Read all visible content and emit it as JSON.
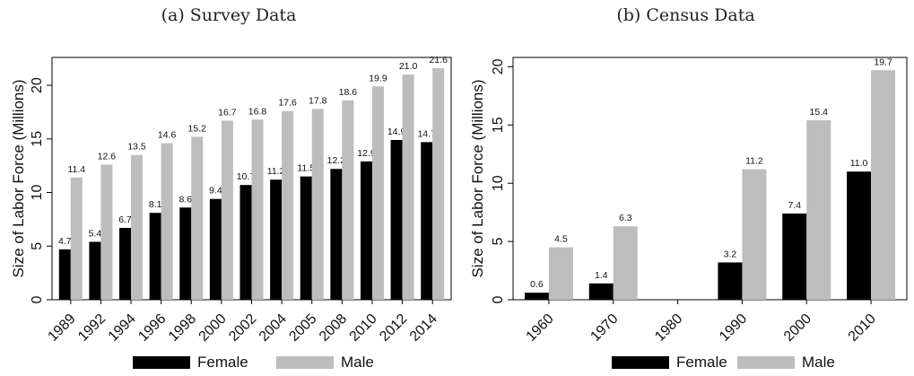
{
  "colors": {
    "female": "#000000",
    "male": "#bdbdbd"
  },
  "chart_data": [
    {
      "type": "bar",
      "title": "(a) Survey Data",
      "ylabel": "Size of Labor Force (Millions)",
      "xlabel": "",
      "ylim": [
        0,
        22.6
      ],
      "yticks": [
        0,
        5,
        10,
        15,
        20
      ],
      "grid": false,
      "legend_placement": "bottom",
      "categories": [
        "1989",
        "1992",
        "1994",
        "1996",
        "1998",
        "2000",
        "2002",
        "2004",
        "2005",
        "2008",
        "2010",
        "2012",
        "2014"
      ],
      "series": [
        {
          "name": "Female",
          "values": [
            4.7,
            5.4,
            6.7,
            8.1,
            8.6,
            9.4,
            10.7,
            11.2,
            11.5,
            12.2,
            12.9,
            14.9,
            14.7
          ],
          "labels": [
            "4.7",
            "5.4",
            "6.7",
            "8.1",
            "8.6",
            "9.4",
            "10.7",
            "11.2",
            "11.5",
            "12.2",
            "12.9",
            "14.9",
            "14.7"
          ]
        },
        {
          "name": "Male",
          "values": [
            11.4,
            12.6,
            13.5,
            14.6,
            15.2,
            16.7,
            16.8,
            17.6,
            17.8,
            18.6,
            19.9,
            21.0,
            21.6
          ],
          "labels": [
            "11.4",
            "12.6",
            "13.5",
            "14.6",
            "15.2",
            "16.7",
            "16.8",
            "17.6",
            "17.8",
            "18.6",
            "19.9",
            "21.0",
            "21.6"
          ]
        }
      ]
    },
    {
      "type": "bar",
      "title": "(b) Census Data",
      "ylabel": "Size of Labor Force (Millions)",
      "xlabel": "",
      "ylim": [
        0,
        20.8
      ],
      "yticks": [
        0,
        5,
        10,
        15,
        20
      ],
      "grid": false,
      "legend_placement": "bottom",
      "categories": [
        "1960",
        "1970",
        "1980",
        "1990",
        "2000",
        "2010"
      ],
      "series": [
        {
          "name": "Female",
          "values": [
            0.6,
            1.4,
            null,
            3.2,
            7.4,
            11.0
          ],
          "labels": [
            "0.6",
            "1.4",
            "",
            "3.2",
            "7.4",
            "11.0"
          ]
        },
        {
          "name": "Male",
          "values": [
            4.5,
            6.3,
            null,
            11.2,
            15.4,
            19.7
          ],
          "labels": [
            "4.5",
            "6.3",
            "",
            "11.2",
            "15.4",
            "19.7"
          ]
        }
      ]
    }
  ]
}
